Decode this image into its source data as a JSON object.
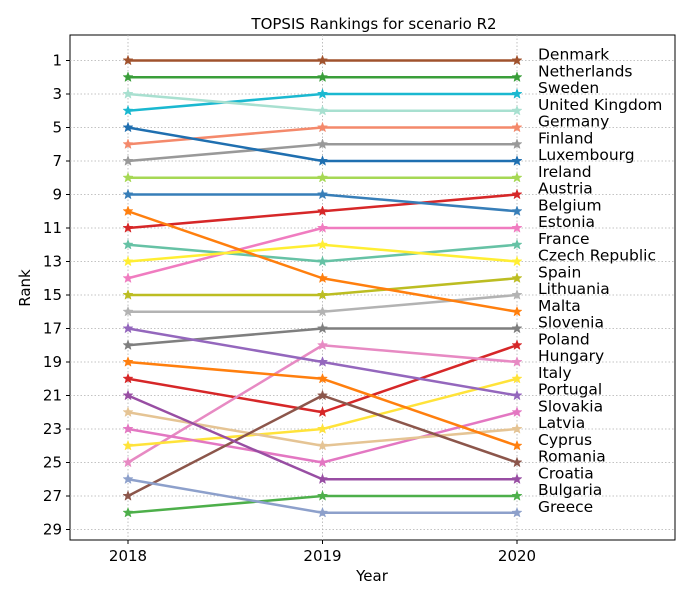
{
  "chart_data": {
    "type": "line",
    "title": "TOPSIS Rankings for scenario R2",
    "xlabel": "Year",
    "ylabel": "Rank",
    "x": [
      "2018",
      "2019",
      "2020"
    ],
    "ylim": [
      29.5,
      0
    ],
    "y_inverted": true,
    "yticks": [
      1,
      3,
      5,
      7,
      9,
      11,
      13,
      15,
      17,
      19,
      21,
      23,
      25,
      27,
      29
    ],
    "grid": true,
    "marker": "star",
    "legend_placement": "right-of-last-point",
    "series": [
      {
        "name": "Denmark",
        "values": [
          1,
          1,
          1
        ],
        "color": "#a0522d"
      },
      {
        "name": "Netherlands",
        "values": [
          2,
          2,
          2
        ],
        "color": "#3a9e3a"
      },
      {
        "name": "Sweden",
        "values": [
          4,
          3,
          3
        ],
        "color": "#1ab8d0"
      },
      {
        "name": "United Kingdom",
        "values": [
          3,
          4,
          4
        ],
        "color": "#a8e0d0"
      },
      {
        "name": "Germany",
        "values": [
          6,
          5,
          5
        ],
        "color": "#f4896b"
      },
      {
        "name": "Finland",
        "values": [
          7,
          6,
          6
        ],
        "color": "#999999"
      },
      {
        "name": "Luxembourg",
        "values": [
          5,
          7,
          7
        ],
        "color": "#1f6fb0"
      },
      {
        "name": "Ireland",
        "values": [
          8,
          8,
          8
        ],
        "color": "#a6d854"
      },
      {
        "name": "Austria",
        "values": [
          11,
          10,
          9
        ],
        "color": "#d62728"
      },
      {
        "name": "Belgium",
        "values": [
          9,
          9,
          10
        ],
        "color": "#377eb8"
      },
      {
        "name": "Estonia",
        "values": [
          14,
          11,
          11
        ],
        "color": "#f07cc0"
      },
      {
        "name": "France",
        "values": [
          12,
          13,
          12
        ],
        "color": "#66c2a5"
      },
      {
        "name": "Czech Republic",
        "values": [
          13,
          12,
          13
        ],
        "color": "#ffee33"
      },
      {
        "name": "Spain",
        "values": [
          15,
          15,
          14
        ],
        "color": "#bcbd22"
      },
      {
        "name": "Lithuania",
        "values": [
          16,
          16,
          15
        ],
        "color": "#b3b3b3"
      },
      {
        "name": "Malta",
        "values": [
          10,
          14,
          16
        ],
        "color": "#ff7f0e"
      },
      {
        "name": "Slovenia",
        "values": [
          18,
          17,
          17
        ],
        "color": "#7f7f7f"
      },
      {
        "name": "Poland",
        "values": [
          20,
          22,
          18
        ],
        "color": "#d62728"
      },
      {
        "name": "Hungary",
        "values": [
          25,
          18,
          19
        ],
        "color": "#e78ac3"
      },
      {
        "name": "Italy",
        "values": [
          24,
          23,
          20
        ],
        "color": "#ffe33a"
      },
      {
        "name": "Portugal",
        "values": [
          17,
          19,
          21
        ],
        "color": "#9467bd"
      },
      {
        "name": "Slovakia",
        "values": [
          23,
          25,
          22
        ],
        "color": "#e377c2"
      },
      {
        "name": "Latvia",
        "values": [
          22,
          24,
          23
        ],
        "color": "#e5c494"
      },
      {
        "name": "Cyprus",
        "values": [
          19,
          20,
          24
        ],
        "color": "#ff7f0e"
      },
      {
        "name": "Romania",
        "values": [
          27,
          21,
          25
        ],
        "color": "#8c564b"
      },
      {
        "name": "Croatia",
        "values": [
          21,
          26,
          26
        ],
        "color": "#984ea3"
      },
      {
        "name": "Bulgaria",
        "values": [
          28,
          27,
          27
        ],
        "color": "#4daf4a"
      },
      {
        "name": "Greece",
        "values": [
          26,
          28,
          28
        ],
        "color": "#8da0cb"
      }
    ]
  }
}
